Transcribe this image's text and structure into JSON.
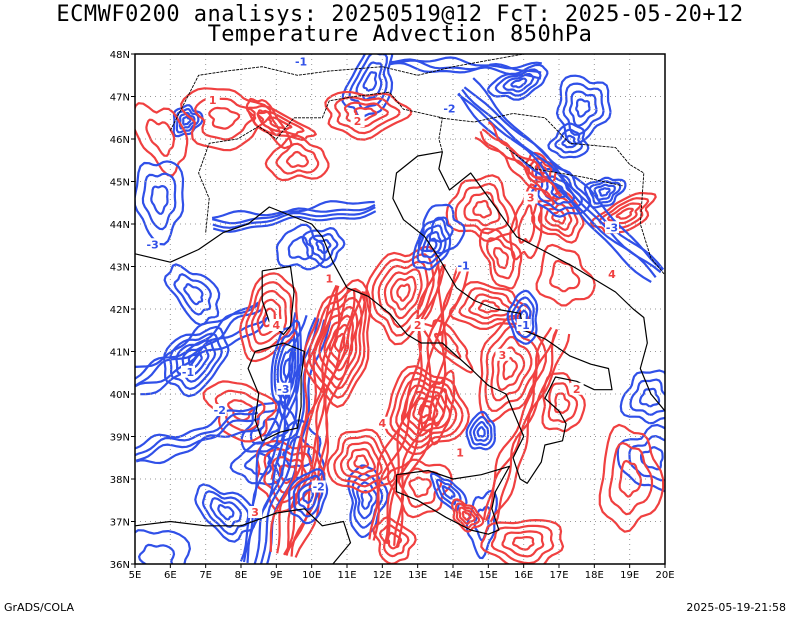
{
  "title_line1": "ECMWF0200 analisys: 20250519@12 FcT: 2025-05-20+12",
  "title_line2": "Temperature Advection 850hPa",
  "credit": "GrADS/COLA",
  "timestamp": "2025-05-19-21:58",
  "colors": {
    "positive": "#f04040",
    "negative": "#3050e8",
    "coast": "#000000",
    "grid": "#999999"
  },
  "chart_data": {
    "type": "contour-map",
    "variable": "Temperature Advection 850hPa",
    "xlim": [
      5,
      20
    ],
    "ylim": [
      36,
      48
    ],
    "x_ticks": [
      "5E",
      "6E",
      "7E",
      "8E",
      "9E",
      "10E",
      "11E",
      "12E",
      "13E",
      "14E",
      "15E",
      "16E",
      "17E",
      "18E",
      "19E",
      "20E"
    ],
    "y_ticks": [
      "36N",
      "37N",
      "38N",
      "39N",
      "40N",
      "41N",
      "42N",
      "43N",
      "44N",
      "45N",
      "46N",
      "47N",
      "48N"
    ],
    "grid": true,
    "contour_labels_positive": [
      "1",
      "2",
      "3",
      "4"
    ],
    "contour_labels_negative": [
      "-1",
      "-2",
      "-3"
    ]
  }
}
